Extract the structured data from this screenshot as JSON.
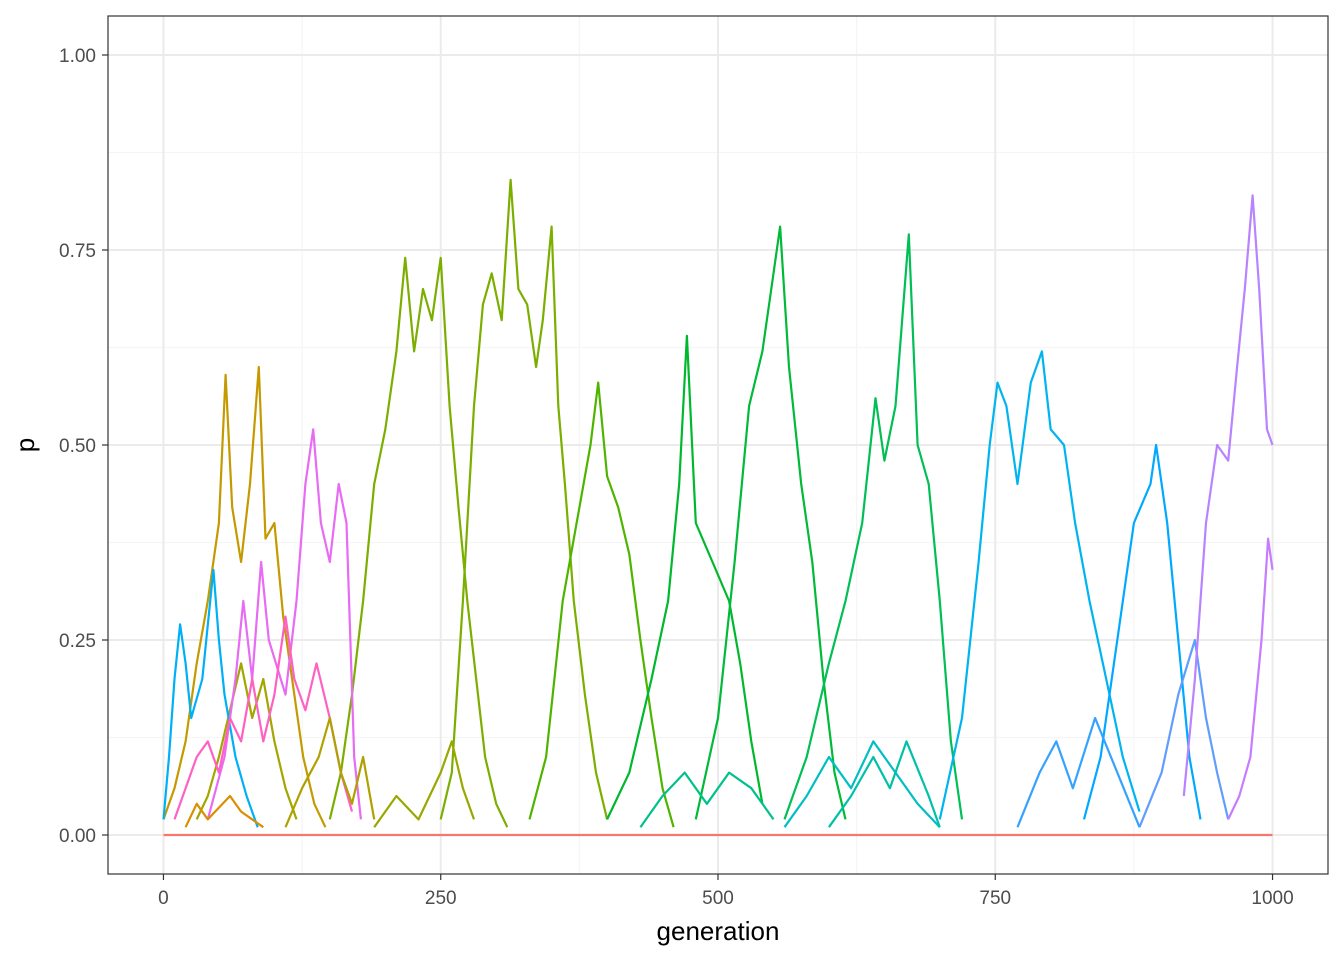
{
  "chart_data": {
    "type": "line",
    "title": "",
    "xlabel": "generation",
    "ylabel": "p",
    "xlim": [
      -50,
      1050
    ],
    "ylim": [
      -0.05,
      1.05
    ],
    "x_ticks": [
      {
        "value": 0,
        "label": "0"
      },
      {
        "value": 250,
        "label": "250"
      },
      {
        "value": 500,
        "label": "500"
      },
      {
        "value": 750,
        "label": "750"
      },
      {
        "value": 1000,
        "label": "1000"
      }
    ],
    "y_ticks": [
      {
        "value": 0,
        "label": "0.00"
      },
      {
        "value": 0.25,
        "label": "0.25"
      },
      {
        "value": 0.5,
        "label": "0.50"
      },
      {
        "value": 0.75,
        "label": "0.75"
      },
      {
        "value": 1,
        "label": "1.00"
      }
    ],
    "grid": true,
    "legend": "none",
    "colors": {
      "panel_border": "#333333",
      "grid_major": "#ebebeb",
      "grid_minor": "#f5f5f5",
      "baseline": "#f8766d"
    },
    "series": [
      {
        "color": "#c49a00",
        "points": [
          [
            0,
            0.02
          ],
          [
            10,
            0.06
          ],
          [
            20,
            0.12
          ],
          [
            30,
            0.22
          ],
          [
            40,
            0.3
          ],
          [
            50,
            0.4
          ],
          [
            56,
            0.59
          ],
          [
            62,
            0.42
          ],
          [
            70,
            0.35
          ],
          [
            78,
            0.45
          ],
          [
            86,
            0.6
          ],
          [
            92,
            0.38
          ],
          [
            100,
            0.4
          ],
          [
            108,
            0.28
          ],
          [
            116,
            0.2
          ],
          [
            126,
            0.1
          ],
          [
            136,
            0.04
          ],
          [
            146,
            0.01
          ]
        ]
      },
      {
        "color": "#a3a500",
        "points": [
          [
            30,
            0.02
          ],
          [
            40,
            0.05
          ],
          [
            50,
            0.1
          ],
          [
            60,
            0.16
          ],
          [
            70,
            0.22
          ],
          [
            80,
            0.15
          ],
          [
            90,
            0.2
          ],
          [
            100,
            0.12
          ],
          [
            110,
            0.06
          ],
          [
            120,
            0.02
          ]
        ]
      },
      {
        "color": "#7cae00",
        "points": [
          [
            150,
            0.02
          ],
          [
            160,
            0.08
          ],
          [
            170,
            0.18
          ],
          [
            180,
            0.3
          ],
          [
            190,
            0.45
          ],
          [
            200,
            0.52
          ],
          [
            210,
            0.62
          ],
          [
            218,
            0.74
          ],
          [
            226,
            0.62
          ],
          [
            234,
            0.7
          ],
          [
            242,
            0.66
          ],
          [
            250,
            0.74
          ],
          [
            258,
            0.55
          ],
          [
            266,
            0.42
          ],
          [
            274,
            0.3
          ],
          [
            282,
            0.2
          ],
          [
            290,
            0.1
          ],
          [
            300,
            0.04
          ],
          [
            310,
            0.01
          ]
        ]
      },
      {
        "color": "#7cae00",
        "points": [
          [
            250,
            0.02
          ],
          [
            260,
            0.08
          ],
          [
            270,
            0.3
          ],
          [
            280,
            0.55
          ],
          [
            288,
            0.68
          ],
          [
            296,
            0.72
          ],
          [
            305,
            0.66
          ],
          [
            313,
            0.84
          ],
          [
            320,
            0.7
          ],
          [
            328,
            0.68
          ],
          [
            336,
            0.6
          ],
          [
            342,
            0.66
          ],
          [
            350,
            0.78
          ],
          [
            356,
            0.55
          ],
          [
            362,
            0.45
          ],
          [
            370,
            0.3
          ],
          [
            380,
            0.18
          ],
          [
            390,
            0.08
          ],
          [
            400,
            0.02
          ]
        ]
      },
      {
        "color": "#4fb400",
        "points": [
          [
            330,
            0.02
          ],
          [
            345,
            0.1
          ],
          [
            360,
            0.3
          ],
          [
            375,
            0.42
          ],
          [
            385,
            0.5
          ],
          [
            392,
            0.58
          ],
          [
            400,
            0.46
          ],
          [
            410,
            0.42
          ],
          [
            420,
            0.36
          ],
          [
            430,
            0.25
          ],
          [
            440,
            0.15
          ],
          [
            450,
            0.06
          ],
          [
            460,
            0.01
          ]
        ]
      },
      {
        "color": "#00b82e",
        "points": [
          [
            400,
            0.02
          ],
          [
            420,
            0.08
          ],
          [
            440,
            0.2
          ],
          [
            455,
            0.3
          ],
          [
            465,
            0.45
          ],
          [
            472,
            0.64
          ],
          [
            480,
            0.4
          ],
          [
            495,
            0.35
          ],
          [
            510,
            0.3
          ],
          [
            520,
            0.22
          ],
          [
            530,
            0.12
          ],
          [
            540,
            0.04
          ]
        ]
      },
      {
        "color": "#00ba38",
        "points": [
          [
            480,
            0.02
          ],
          [
            500,
            0.15
          ],
          [
            515,
            0.35
          ],
          [
            528,
            0.55
          ],
          [
            540,
            0.62
          ],
          [
            550,
            0.72
          ],
          [
            556,
            0.78
          ],
          [
            564,
            0.6
          ],
          [
            575,
            0.45
          ],
          [
            585,
            0.35
          ],
          [
            595,
            0.2
          ],
          [
            605,
            0.08
          ],
          [
            615,
            0.02
          ]
        ]
      },
      {
        "color": "#00bf55",
        "points": [
          [
            560,
            0.02
          ],
          [
            580,
            0.1
          ],
          [
            600,
            0.22
          ],
          [
            615,
            0.3
          ],
          [
            630,
            0.4
          ],
          [
            642,
            0.56
          ],
          [
            650,
            0.48
          ],
          [
            660,
            0.55
          ],
          [
            672,
            0.77
          ],
          [
            680,
            0.5
          ],
          [
            690,
            0.45
          ],
          [
            700,
            0.3
          ],
          [
            710,
            0.12
          ],
          [
            720,
            0.02
          ]
        ]
      },
      {
        "color": "#00c08b",
        "points": [
          [
            430,
            0.01
          ],
          [
            450,
            0.05
          ],
          [
            470,
            0.08
          ],
          [
            490,
            0.04
          ],
          [
            510,
            0.08
          ],
          [
            530,
            0.06
          ],
          [
            550,
            0.02
          ]
        ]
      },
      {
        "color": "#00bfc4",
        "points": [
          [
            560,
            0.01
          ],
          [
            580,
            0.05
          ],
          [
            600,
            0.1
          ],
          [
            620,
            0.06
          ],
          [
            640,
            0.12
          ],
          [
            660,
            0.08
          ],
          [
            680,
            0.04
          ],
          [
            700,
            0.01
          ]
        ]
      },
      {
        "color": "#00b4f0",
        "points": [
          [
            700,
            0.02
          ],
          [
            720,
            0.15
          ],
          [
            735,
            0.35
          ],
          [
            745,
            0.5
          ],
          [
            752,
            0.58
          ],
          [
            760,
            0.55
          ],
          [
            770,
            0.45
          ],
          [
            782,
            0.58
          ],
          [
            792,
            0.62
          ],
          [
            800,
            0.52
          ],
          [
            812,
            0.5
          ],
          [
            822,
            0.4
          ],
          [
            835,
            0.3
          ],
          [
            850,
            0.2
          ],
          [
            865,
            0.1
          ],
          [
            880,
            0.03
          ]
        ]
      },
      {
        "color": "#00a9ff",
        "points": [
          [
            830,
            0.02
          ],
          [
            845,
            0.1
          ],
          [
            860,
            0.25
          ],
          [
            875,
            0.4
          ],
          [
            890,
            0.45
          ],
          [
            895,
            0.5
          ],
          [
            905,
            0.4
          ],
          [
            915,
            0.25
          ],
          [
            925,
            0.1
          ],
          [
            935,
            0.02
          ]
        ]
      },
      {
        "color": "#00b0f6",
        "points": [
          [
            0,
            0.02
          ],
          [
            5,
            0.1
          ],
          [
            10,
            0.2
          ],
          [
            15,
            0.27
          ],
          [
            20,
            0.22
          ],
          [
            25,
            0.15
          ],
          [
            35,
            0.2
          ],
          [
            45,
            0.34
          ],
          [
            50,
            0.25
          ],
          [
            55,
            0.18
          ],
          [
            65,
            0.1
          ],
          [
            75,
            0.05
          ],
          [
            85,
            0.01
          ]
        ]
      },
      {
        "color": "#619cff",
        "points": [
          [
            880,
            0.01
          ],
          [
            900,
            0.08
          ],
          [
            915,
            0.18
          ],
          [
            930,
            0.25
          ],
          [
            940,
            0.15
          ],
          [
            950,
            0.08
          ],
          [
            960,
            0.02
          ]
        ]
      },
      {
        "color": "#b983ff",
        "points": [
          [
            920,
            0.05
          ],
          [
            930,
            0.2
          ],
          [
            940,
            0.4
          ],
          [
            950,
            0.5
          ],
          [
            960,
            0.48
          ],
          [
            968,
            0.6
          ],
          [
            975,
            0.7
          ],
          [
            982,
            0.82
          ],
          [
            988,
            0.7
          ],
          [
            995,
            0.52
          ],
          [
            1000,
            0.5
          ]
        ]
      },
      {
        "color": "#e76bf3",
        "points": [
          [
            40,
            0.02
          ],
          [
            55,
            0.1
          ],
          [
            65,
            0.2
          ],
          [
            72,
            0.3
          ],
          [
            80,
            0.2
          ],
          [
            88,
            0.35
          ],
          [
            95,
            0.25
          ],
          [
            110,
            0.18
          ],
          [
            120,
            0.3
          ],
          [
            128,
            0.45
          ],
          [
            135,
            0.52
          ],
          [
            142,
            0.4
          ],
          [
            150,
            0.35
          ],
          [
            158,
            0.45
          ],
          [
            165,
            0.4
          ],
          [
            172,
            0.1
          ],
          [
            178,
            0.02
          ]
        ]
      },
      {
        "color": "#c77cff",
        "points": [
          [
            960,
            0.02
          ],
          [
            970,
            0.05
          ],
          [
            980,
            0.1
          ],
          [
            990,
            0.25
          ],
          [
            996,
            0.38
          ],
          [
            1000,
            0.34
          ]
        ]
      },
      {
        "color": "#ff61c3",
        "points": [
          [
            10,
            0.02
          ],
          [
            20,
            0.06
          ],
          [
            30,
            0.1
          ],
          [
            40,
            0.12
          ],
          [
            50,
            0.08
          ],
          [
            60,
            0.15
          ],
          [
            70,
            0.12
          ],
          [
            80,
            0.2
          ],
          [
            90,
            0.12
          ],
          [
            100,
            0.18
          ],
          [
            110,
            0.28
          ],
          [
            118,
            0.2
          ],
          [
            128,
            0.16
          ],
          [
            138,
            0.22
          ],
          [
            150,
            0.15
          ],
          [
            160,
            0.08
          ],
          [
            170,
            0.03
          ]
        ]
      },
      {
        "color": "#db8e00",
        "points": [
          [
            20,
            0.01
          ],
          [
            30,
            0.04
          ],
          [
            40,
            0.02
          ],
          [
            60,
            0.05
          ],
          [
            70,
            0.03
          ],
          [
            90,
            0.01
          ]
        ]
      },
      {
        "color": "#b0a000",
        "points": [
          [
            110,
            0.01
          ],
          [
            125,
            0.06
          ],
          [
            140,
            0.1
          ],
          [
            150,
            0.15
          ],
          [
            160,
            0.08
          ],
          [
            170,
            0.04
          ],
          [
            180,
            0.1
          ],
          [
            190,
            0.02
          ]
        ]
      },
      {
        "color": "#99a800",
        "points": [
          [
            190,
            0.01
          ],
          [
            210,
            0.05
          ],
          [
            230,
            0.02
          ],
          [
            250,
            0.08
          ],
          [
            260,
            0.12
          ],
          [
            270,
            0.06
          ],
          [
            280,
            0.02
          ]
        ]
      },
      {
        "color": "#00c1a7",
        "points": [
          [
            600,
            0.01
          ],
          [
            620,
            0.05
          ],
          [
            640,
            0.1
          ],
          [
            655,
            0.06
          ],
          [
            670,
            0.12
          ],
          [
            690,
            0.05
          ],
          [
            700,
            0.01
          ]
        ]
      },
      {
        "color": "#35a2ff",
        "points": [
          [
            770,
            0.01
          ],
          [
            790,
            0.08
          ],
          [
            805,
            0.12
          ],
          [
            820,
            0.06
          ],
          [
            840,
            0.15
          ],
          [
            860,
            0.08
          ],
          [
            880,
            0.01
          ]
        ]
      },
      {
        "color": "#f8766d",
        "points": [
          [
            0,
            0.0
          ],
          [
            1000,
            0.0
          ]
        ]
      }
    ]
  }
}
